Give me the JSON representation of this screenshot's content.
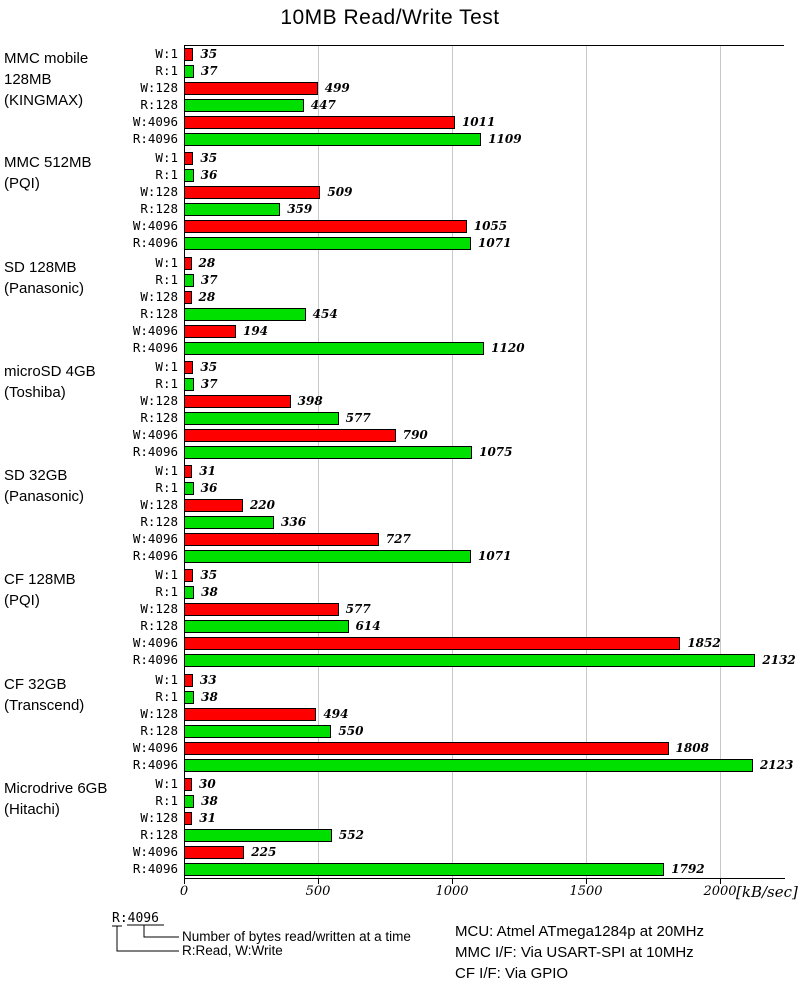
{
  "chart_data": {
    "type": "bar",
    "orientation": "horizontal",
    "title": "10MB Read/Write Test",
    "x_unit": "[kB/sec]",
    "xlabel": "",
    "ylabel": "",
    "xlim": [
      0,
      2238
    ],
    "x_ticks": [
      0,
      500,
      1000,
      1500,
      2000
    ],
    "grid": true,
    "bar_labels": [
      "W:1",
      "R:1",
      "W:128",
      "R:128",
      "W:4096",
      "R:4096"
    ],
    "colors": {
      "write": "#ff0000",
      "read": "#00e000"
    },
    "groups": [
      {
        "label_lines": [
          "MMC mobile",
          "128MB",
          "(KINGMAX)"
        ],
        "values": [
          35,
          37,
          499,
          447,
          1011,
          1109
        ]
      },
      {
        "label_lines": [
          "MMC 512MB",
          "(PQI)"
        ],
        "values": [
          35,
          36,
          509,
          359,
          1055,
          1071
        ]
      },
      {
        "label_lines": [
          "SD 128MB",
          "(Panasonic)"
        ],
        "values": [
          28,
          37,
          28,
          454,
          194,
          1120
        ]
      },
      {
        "label_lines": [
          "microSD 4GB",
          "(Toshiba)"
        ],
        "values": [
          35,
          37,
          398,
          577,
          790,
          1075
        ]
      },
      {
        "label_lines": [
          "SD 32GB",
          "(Panasonic)"
        ],
        "values": [
          31,
          36,
          220,
          336,
          727,
          1071
        ]
      },
      {
        "label_lines": [
          "CF 128MB",
          "(PQI)"
        ],
        "values": [
          35,
          38,
          577,
          614,
          1852,
          2132
        ]
      },
      {
        "label_lines": [
          "CF 32GB",
          "(Transcend)"
        ],
        "values": [
          33,
          38,
          494,
          550,
          1808,
          2123
        ]
      },
      {
        "label_lines": [
          "Microdrive 6GB",
          "(Hitachi)"
        ],
        "values": [
          30,
          38,
          31,
          552,
          225,
          1792
        ]
      }
    ],
    "legend": {
      "example": "R:4096",
      "note_bytes": "Number of bytes read/written at a time",
      "note_rw": "R:Read, W:Write"
    },
    "info_lines": [
      "MCU: Atmel ATmega1284p at 20MHz",
      "MMC I/F: Via USART-SPI at 10MHz",
      "CF I/F: Via GPIO"
    ]
  }
}
